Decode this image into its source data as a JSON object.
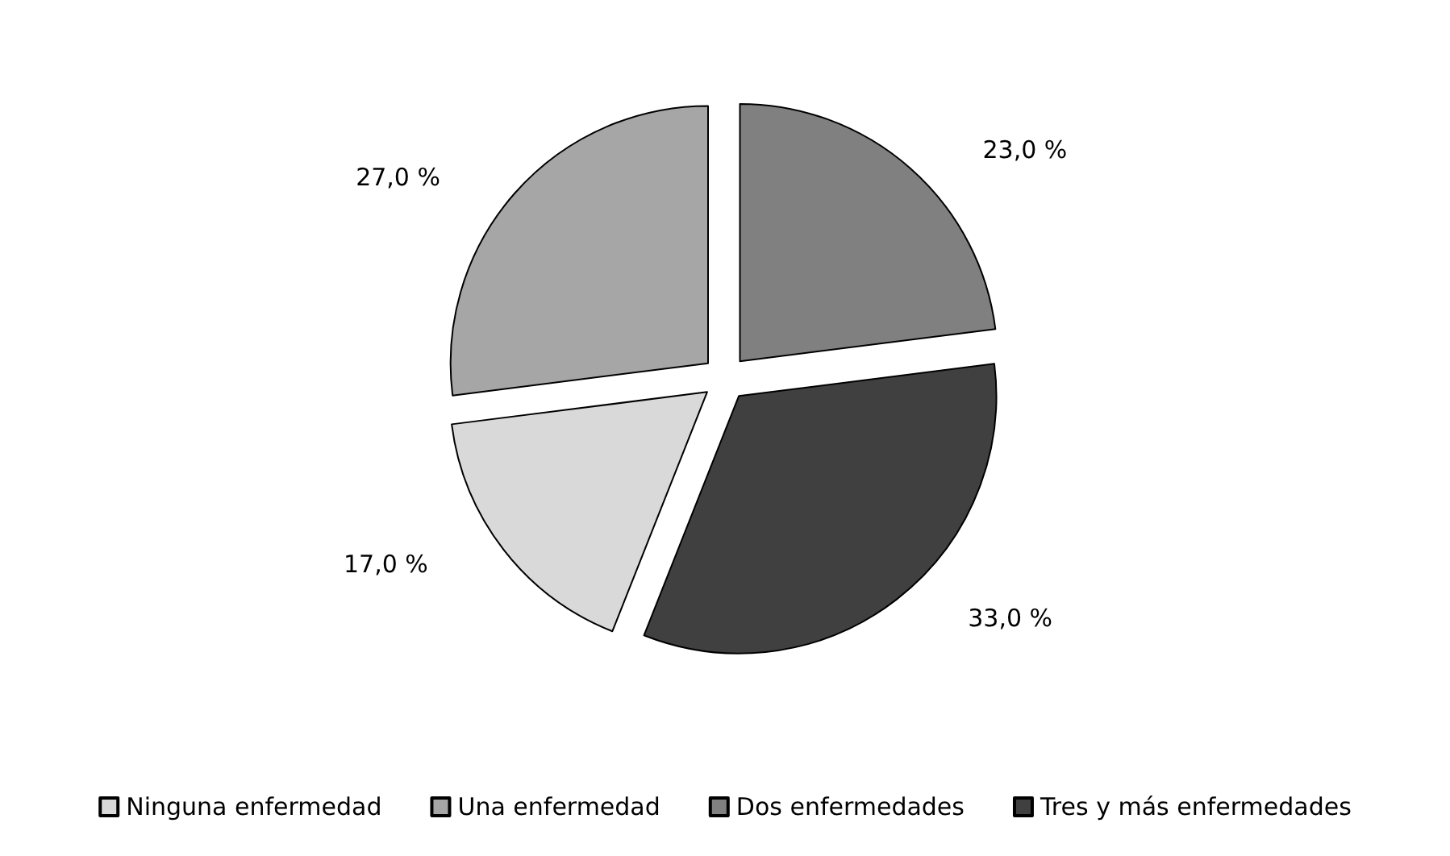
{
  "chart_data": {
    "type": "pie",
    "categories": [
      "Ninguna enfermedad",
      "Una enfermedad",
      "Dos enfermedades",
      "Tres y más enfermedades"
    ],
    "values": [
      17,
      27,
      23,
      33
    ],
    "colors": [
      "#d9d9d9",
      "#a6a6a6",
      "#808080",
      "#404040"
    ],
    "value_labels": [
      "17,0 %",
      "27,0 %",
      "23,0 %",
      "33,0 %"
    ],
    "legend": "bottom"
  }
}
